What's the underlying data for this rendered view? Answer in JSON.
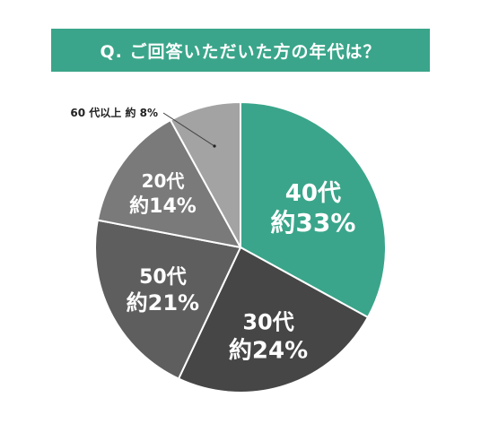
{
  "header": {
    "title": "Q. ご回答いただいた方の年代は？"
  },
  "chart_data": {
    "type": "pie",
    "title": "Q. ご回答いただいた方の年代は？",
    "start_angle_deg": 0,
    "direction": "clockwise",
    "slices": [
      {
        "category": "40代",
        "value": 33,
        "label": "約33%",
        "color": "#3aa58a"
      },
      {
        "category": "30代",
        "value": 24,
        "label": "約24%",
        "color": "#464646"
      },
      {
        "category": "50代",
        "value": 21,
        "label": "約21%",
        "color": "#5e5e5e"
      },
      {
        "category": "20代",
        "value": 14,
        "label": "約14%",
        "color": "#7a7a7a"
      },
      {
        "category": "60代以上",
        "value": 8,
        "label": "約8%",
        "color": "#a3a3a3"
      }
    ],
    "outside_label_text": "60 代以上 約 8%"
  }
}
